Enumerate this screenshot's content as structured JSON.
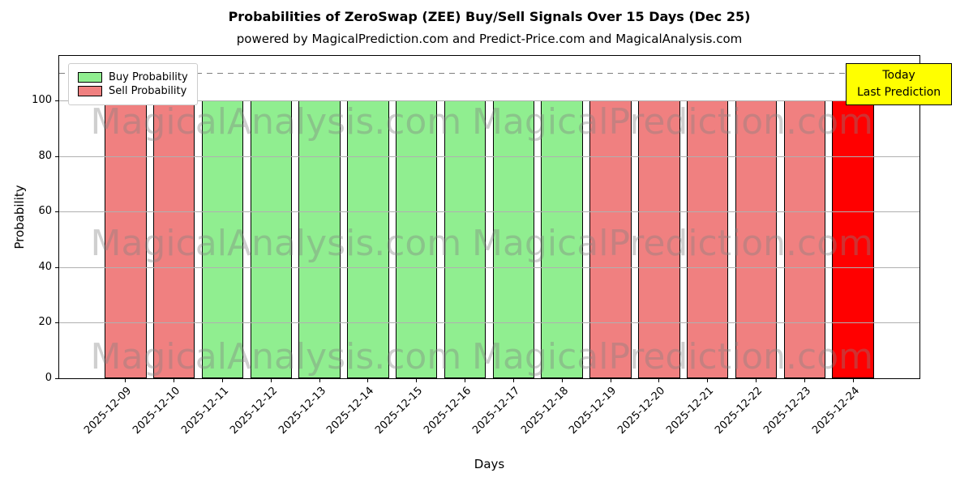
{
  "chart_data": {
    "type": "bar",
    "title": "Probabilities of ZeroSwap (ZEE) Buy/Sell Signals Over 15 Days (Dec 25)",
    "subtitle": "powered by MagicalPrediction.com and Predict-Price.com and MagicalAnalysis.com",
    "xlabel": "Days",
    "ylabel": "Probability",
    "ylim": [
      0,
      116
    ],
    "yticks": [
      0,
      20,
      40,
      60,
      80,
      100
    ],
    "threshold_line_y": 110,
    "grid": true,
    "categories": [
      "2025-12-09",
      "2025-12-10",
      "2025-12-11",
      "2025-12-12",
      "2025-12-13",
      "2025-12-14",
      "2025-12-15",
      "2025-12-16",
      "2025-12-17",
      "2025-12-18",
      "2025-12-19",
      "2025-12-20",
      "2025-12-21",
      "2025-12-22",
      "2025-12-23",
      "2025-12-24"
    ],
    "values": [
      100,
      100,
      100,
      100,
      100,
      100,
      100,
      100,
      100,
      100,
      100,
      100,
      100,
      100,
      100,
      100
    ],
    "bar_types": [
      "sell",
      "sell",
      "buy",
      "buy",
      "buy",
      "buy",
      "buy",
      "buy",
      "buy",
      "buy",
      "sell",
      "sell",
      "sell",
      "sell",
      "sell",
      "today"
    ],
    "colors": {
      "buy": "#90ee90",
      "sell": "#f08080",
      "today": "#ff0000",
      "edge": "#000000",
      "grid": "#b0b0b0"
    },
    "legend": [
      {
        "label": "Buy Probability",
        "color": "#90ee90"
      },
      {
        "label": "Sell Probability",
        "color": "#f08080"
      }
    ],
    "legend_position": "top-left",
    "annotation": {
      "lines": [
        "Today",
        "Last Prediction"
      ],
      "bg": "#ffff00"
    },
    "watermarks": [
      "MagicalAnalysis.com",
      "MagicalPrediction.com"
    ]
  }
}
